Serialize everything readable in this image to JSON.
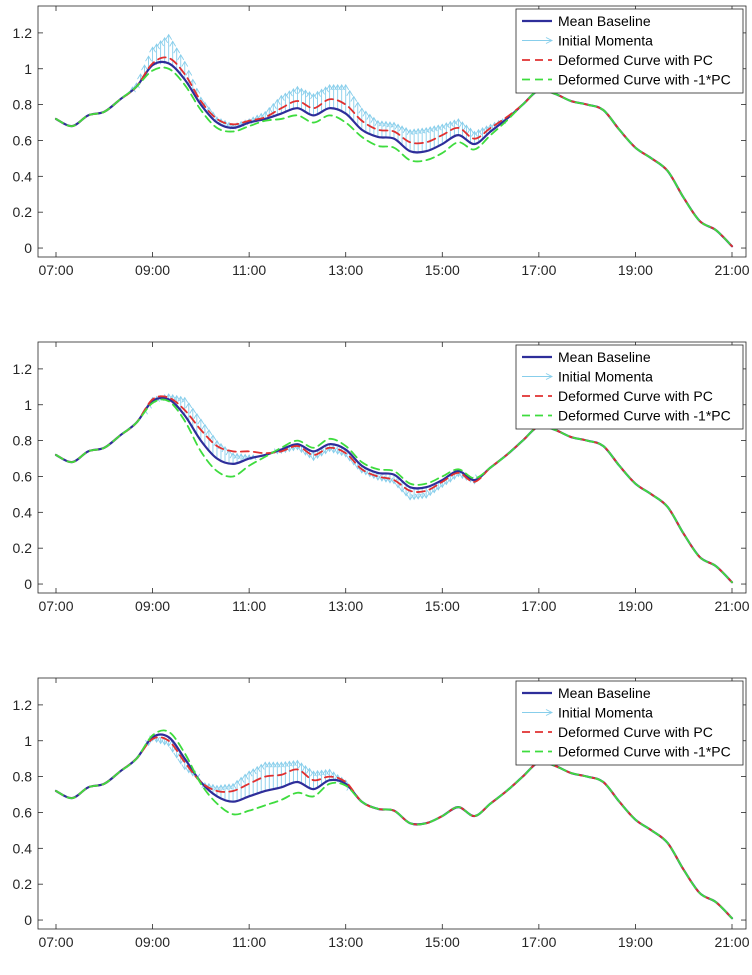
{
  "chart_data": [
    {
      "type": "line",
      "title": "",
      "xlabel": "",
      "ylabel": "",
      "xlim": [
        "07:00",
        "21:00"
      ],
      "ylim": [
        -0.05,
        1.35
      ],
      "x_ticks": [
        "07:00",
        "09:00",
        "11:00",
        "13:00",
        "15:00",
        "17:00",
        "19:00",
        "21:00"
      ],
      "y_ticks": [
        "0",
        "0.2",
        "0.4",
        "0.6",
        "0.8",
        "1",
        "1.2"
      ],
      "grid": false,
      "legend_position": "top-right",
      "x": [
        "07:00",
        "07:20",
        "07:40",
        "08:00",
        "08:20",
        "08:40",
        "09:00",
        "09:20",
        "09:40",
        "10:00",
        "10:20",
        "10:40",
        "11:00",
        "11:20",
        "11:40",
        "12:00",
        "12:20",
        "12:40",
        "13:00",
        "13:20",
        "13:40",
        "14:00",
        "14:20",
        "14:40",
        "15:00",
        "15:20",
        "15:40",
        "16:00",
        "16:20",
        "16:40",
        "17:00",
        "17:20",
        "17:40",
        "18:00",
        "18:20",
        "18:40",
        "19:00",
        "19:20",
        "19:40",
        "20:00",
        "20:20",
        "20:40",
        "21:00"
      ],
      "series": [
        {
          "name": "Mean Baseline",
          "color": "#2E2E9A",
          "style": "solid",
          "values": [
            0.72,
            0.68,
            0.74,
            0.76,
            0.83,
            0.9,
            1.02,
            1.03,
            0.94,
            0.8,
            0.7,
            0.67,
            0.7,
            0.72,
            0.75,
            0.78,
            0.74,
            0.78,
            0.75,
            0.66,
            0.62,
            0.61,
            0.54,
            0.54,
            0.58,
            0.63,
            0.58,
            0.65,
            0.72,
            0.8,
            0.88,
            0.86,
            0.82,
            0.8,
            0.77,
            0.66,
            0.56,
            0.5,
            0.43,
            0.28,
            0.15,
            0.1,
            0.01
          ]
        },
        {
          "name": "Initial Momenta",
          "color": "#87CEEB",
          "style": "arrows",
          "values": [
            0.0,
            0.0,
            0.0,
            0.0,
            0.0,
            0.02,
            0.1,
            0.16,
            0.1,
            0.04,
            0.03,
            0.02,
            0.02,
            0.04,
            0.1,
            0.12,
            0.12,
            0.13,
            0.16,
            0.12,
            0.09,
            0.09,
            0.12,
            0.13,
            0.11,
            0.09,
            0.07,
            0.04,
            0.01,
            0.0,
            0.0,
            0.0,
            0.0,
            0.0,
            0.0,
            0.0,
            0.0,
            0.0,
            0.0,
            0.0,
            0.0,
            0.0,
            0.0
          ]
        },
        {
          "name": "Deformed Curve with PC",
          "color": "#E03030",
          "style": "dashed",
          "values": [
            0.72,
            0.68,
            0.74,
            0.76,
            0.83,
            0.9,
            1.03,
            1.06,
            0.97,
            0.82,
            0.72,
            0.69,
            0.71,
            0.73,
            0.78,
            0.82,
            0.78,
            0.83,
            0.8,
            0.71,
            0.66,
            0.65,
            0.59,
            0.59,
            0.63,
            0.67,
            0.61,
            0.67,
            0.73,
            0.8,
            0.88,
            0.86,
            0.82,
            0.8,
            0.77,
            0.66,
            0.56,
            0.5,
            0.43,
            0.28,
            0.15,
            0.1,
            0.01
          ]
        },
        {
          "name": "Deformed Curve with -1*PC",
          "color": "#3EDC3E",
          "style": "dashed",
          "values": [
            0.72,
            0.68,
            0.74,
            0.76,
            0.83,
            0.9,
            0.99,
            1.0,
            0.91,
            0.77,
            0.67,
            0.65,
            0.68,
            0.71,
            0.72,
            0.74,
            0.7,
            0.74,
            0.7,
            0.62,
            0.57,
            0.56,
            0.49,
            0.49,
            0.53,
            0.59,
            0.55,
            0.63,
            0.71,
            0.8,
            0.88,
            0.86,
            0.82,
            0.8,
            0.77,
            0.66,
            0.56,
            0.5,
            0.43,
            0.28,
            0.15,
            0.1,
            0.01
          ]
        }
      ]
    },
    {
      "type": "line",
      "title": "",
      "xlabel": "",
      "ylabel": "",
      "xlim": [
        "07:00",
        "21:00"
      ],
      "ylim": [
        -0.05,
        1.35
      ],
      "x_ticks": [
        "07:00",
        "09:00",
        "11:00",
        "13:00",
        "15:00",
        "17:00",
        "19:00",
        "21:00"
      ],
      "y_ticks": [
        "0",
        "0.2",
        "0.4",
        "0.6",
        "0.8",
        "1",
        "1.2"
      ],
      "grid": false,
      "legend_position": "top-right",
      "x": [
        "07:00",
        "07:20",
        "07:40",
        "08:00",
        "08:20",
        "08:40",
        "09:00",
        "09:20",
        "09:40",
        "10:00",
        "10:20",
        "10:40",
        "11:00",
        "11:20",
        "11:40",
        "12:00",
        "12:20",
        "12:40",
        "13:00",
        "13:20",
        "13:40",
        "14:00",
        "14:20",
        "14:40",
        "15:00",
        "15:20",
        "15:40",
        "16:00",
        "16:20",
        "16:40",
        "17:00",
        "17:20",
        "17:40",
        "18:00",
        "18:20",
        "18:40",
        "19:00",
        "19:20",
        "19:40",
        "20:00",
        "20:20",
        "20:40",
        "21:00"
      ],
      "series": [
        {
          "name": "Mean Baseline",
          "color": "#2E2E9A",
          "style": "solid",
          "values": [
            0.72,
            0.68,
            0.74,
            0.76,
            0.83,
            0.9,
            1.02,
            1.03,
            0.94,
            0.8,
            0.7,
            0.67,
            0.7,
            0.72,
            0.75,
            0.78,
            0.74,
            0.78,
            0.75,
            0.66,
            0.62,
            0.61,
            0.54,
            0.54,
            0.58,
            0.63,
            0.58,
            0.65,
            0.72,
            0.8,
            0.88,
            0.86,
            0.82,
            0.8,
            0.77,
            0.66,
            0.56,
            0.5,
            0.43,
            0.28,
            0.15,
            0.1,
            0.01
          ]
        },
        {
          "name": "Initial Momenta",
          "color": "#87CEEB",
          "style": "arrows",
          "values": [
            0.0,
            0.0,
            0.0,
            0.0,
            0.0,
            0.01,
            0.02,
            0.03,
            0.1,
            0.12,
            0.1,
            0.06,
            0.02,
            0.0,
            -0.02,
            -0.03,
            -0.05,
            -0.04,
            -0.04,
            -0.04,
            -0.04,
            -0.05,
            -0.07,
            -0.06,
            -0.04,
            -0.03,
            -0.02,
            0.0,
            0.0,
            0.0,
            0.0,
            0.0,
            0.0,
            0.0,
            0.0,
            0.0,
            0.0,
            0.0,
            0.0,
            0.0,
            0.0,
            0.0,
            0.0
          ]
        },
        {
          "name": "Deformed Curve with PC",
          "color": "#E03030",
          "style": "dashed",
          "values": [
            0.72,
            0.68,
            0.74,
            0.76,
            0.83,
            0.9,
            1.03,
            1.04,
            0.97,
            0.86,
            0.77,
            0.74,
            0.74,
            0.73,
            0.74,
            0.77,
            0.72,
            0.76,
            0.73,
            0.64,
            0.6,
            0.58,
            0.52,
            0.52,
            0.57,
            0.62,
            0.57,
            0.65,
            0.72,
            0.8,
            0.88,
            0.86,
            0.82,
            0.8,
            0.77,
            0.66,
            0.56,
            0.5,
            0.43,
            0.28,
            0.15,
            0.1,
            0.01
          ]
        },
        {
          "name": "Deformed Curve with -1*PC",
          "color": "#3EDC3E",
          "style": "dashed",
          "values": [
            0.72,
            0.68,
            0.74,
            0.76,
            0.83,
            0.9,
            1.01,
            1.02,
            0.91,
            0.74,
            0.63,
            0.6,
            0.66,
            0.71,
            0.76,
            0.8,
            0.76,
            0.81,
            0.77,
            0.68,
            0.64,
            0.63,
            0.56,
            0.56,
            0.6,
            0.64,
            0.59,
            0.65,
            0.72,
            0.8,
            0.88,
            0.86,
            0.82,
            0.8,
            0.77,
            0.66,
            0.56,
            0.5,
            0.43,
            0.28,
            0.15,
            0.1,
            0.01
          ]
        }
      ]
    },
    {
      "type": "line",
      "title": "",
      "xlabel": "",
      "ylabel": "",
      "xlim": [
        "07:00",
        "21:00"
      ],
      "ylim": [
        -0.05,
        1.35
      ],
      "x_ticks": [
        "07:00",
        "09:00",
        "11:00",
        "13:00",
        "15:00",
        "17:00",
        "19:00",
        "21:00"
      ],
      "y_ticks": [
        "0",
        "0.2",
        "0.4",
        "0.6",
        "0.8",
        "1",
        "1.2"
      ],
      "grid": false,
      "legend_position": "top-right",
      "x": [
        "07:00",
        "07:20",
        "07:40",
        "08:00",
        "08:20",
        "08:40",
        "09:00",
        "09:20",
        "09:40",
        "10:00",
        "10:20",
        "10:40",
        "11:00",
        "11:20",
        "11:40",
        "12:00",
        "12:20",
        "12:40",
        "13:00",
        "13:20",
        "13:40",
        "14:00",
        "14:20",
        "14:40",
        "15:00",
        "15:20",
        "15:40",
        "16:00",
        "16:20",
        "16:40",
        "17:00",
        "17:20",
        "17:40",
        "18:00",
        "18:20",
        "18:40",
        "19:00",
        "19:20",
        "19:40",
        "20:00",
        "20:20",
        "20:40",
        "21:00"
      ],
      "series": [
        {
          "name": "Mean Baseline",
          "color": "#2E2E9A",
          "style": "solid",
          "values": [
            0.72,
            0.68,
            0.74,
            0.76,
            0.83,
            0.9,
            1.02,
            1.02,
            0.9,
            0.77,
            0.69,
            0.66,
            0.69,
            0.72,
            0.74,
            0.77,
            0.73,
            0.78,
            0.76,
            0.66,
            0.62,
            0.61,
            0.54,
            0.54,
            0.58,
            0.63,
            0.58,
            0.65,
            0.72,
            0.8,
            0.88,
            0.86,
            0.82,
            0.8,
            0.77,
            0.66,
            0.56,
            0.5,
            0.43,
            0.28,
            0.15,
            0.1,
            0.01
          ]
        },
        {
          "name": "Initial Momenta",
          "color": "#87CEEB",
          "style": "arrows",
          "values": [
            0.0,
            0.0,
            0.0,
            0.0,
            0.0,
            0.0,
            -0.02,
            -0.05,
            -0.06,
            0.0,
            0.06,
            0.1,
            0.14,
            0.16,
            0.14,
            0.12,
            0.1,
            0.06,
            0.02,
            0.0,
            0.0,
            0.0,
            0.0,
            0.0,
            0.0,
            0.0,
            0.0,
            0.0,
            0.0,
            0.0,
            0.0,
            0.0,
            0.0,
            0.0,
            0.0,
            0.0,
            0.0,
            0.0,
            0.0,
            0.0,
            0.0,
            0.0,
            0.0
          ]
        },
        {
          "name": "Deformed Curve with PC",
          "color": "#E03030",
          "style": "dashed",
          "values": [
            0.72,
            0.68,
            0.74,
            0.76,
            0.83,
            0.9,
            1.01,
            1.0,
            0.88,
            0.77,
            0.72,
            0.72,
            0.76,
            0.8,
            0.81,
            0.84,
            0.78,
            0.8,
            0.77,
            0.66,
            0.62,
            0.61,
            0.54,
            0.54,
            0.58,
            0.63,
            0.58,
            0.65,
            0.72,
            0.8,
            0.88,
            0.86,
            0.82,
            0.8,
            0.77,
            0.66,
            0.56,
            0.5,
            0.43,
            0.28,
            0.15,
            0.1,
            0.01
          ]
        },
        {
          "name": "Deformed Curve with -1*PC",
          "color": "#3EDC3E",
          "style": "dashed",
          "values": [
            0.72,
            0.68,
            0.74,
            0.76,
            0.83,
            0.9,
            1.03,
            1.05,
            0.93,
            0.76,
            0.65,
            0.59,
            0.61,
            0.64,
            0.67,
            0.71,
            0.69,
            0.76,
            0.75,
            0.66,
            0.62,
            0.61,
            0.54,
            0.54,
            0.58,
            0.63,
            0.58,
            0.65,
            0.72,
            0.8,
            0.88,
            0.86,
            0.82,
            0.8,
            0.77,
            0.66,
            0.56,
            0.5,
            0.43,
            0.28,
            0.15,
            0.1,
            0.01
          ]
        }
      ]
    }
  ]
}
